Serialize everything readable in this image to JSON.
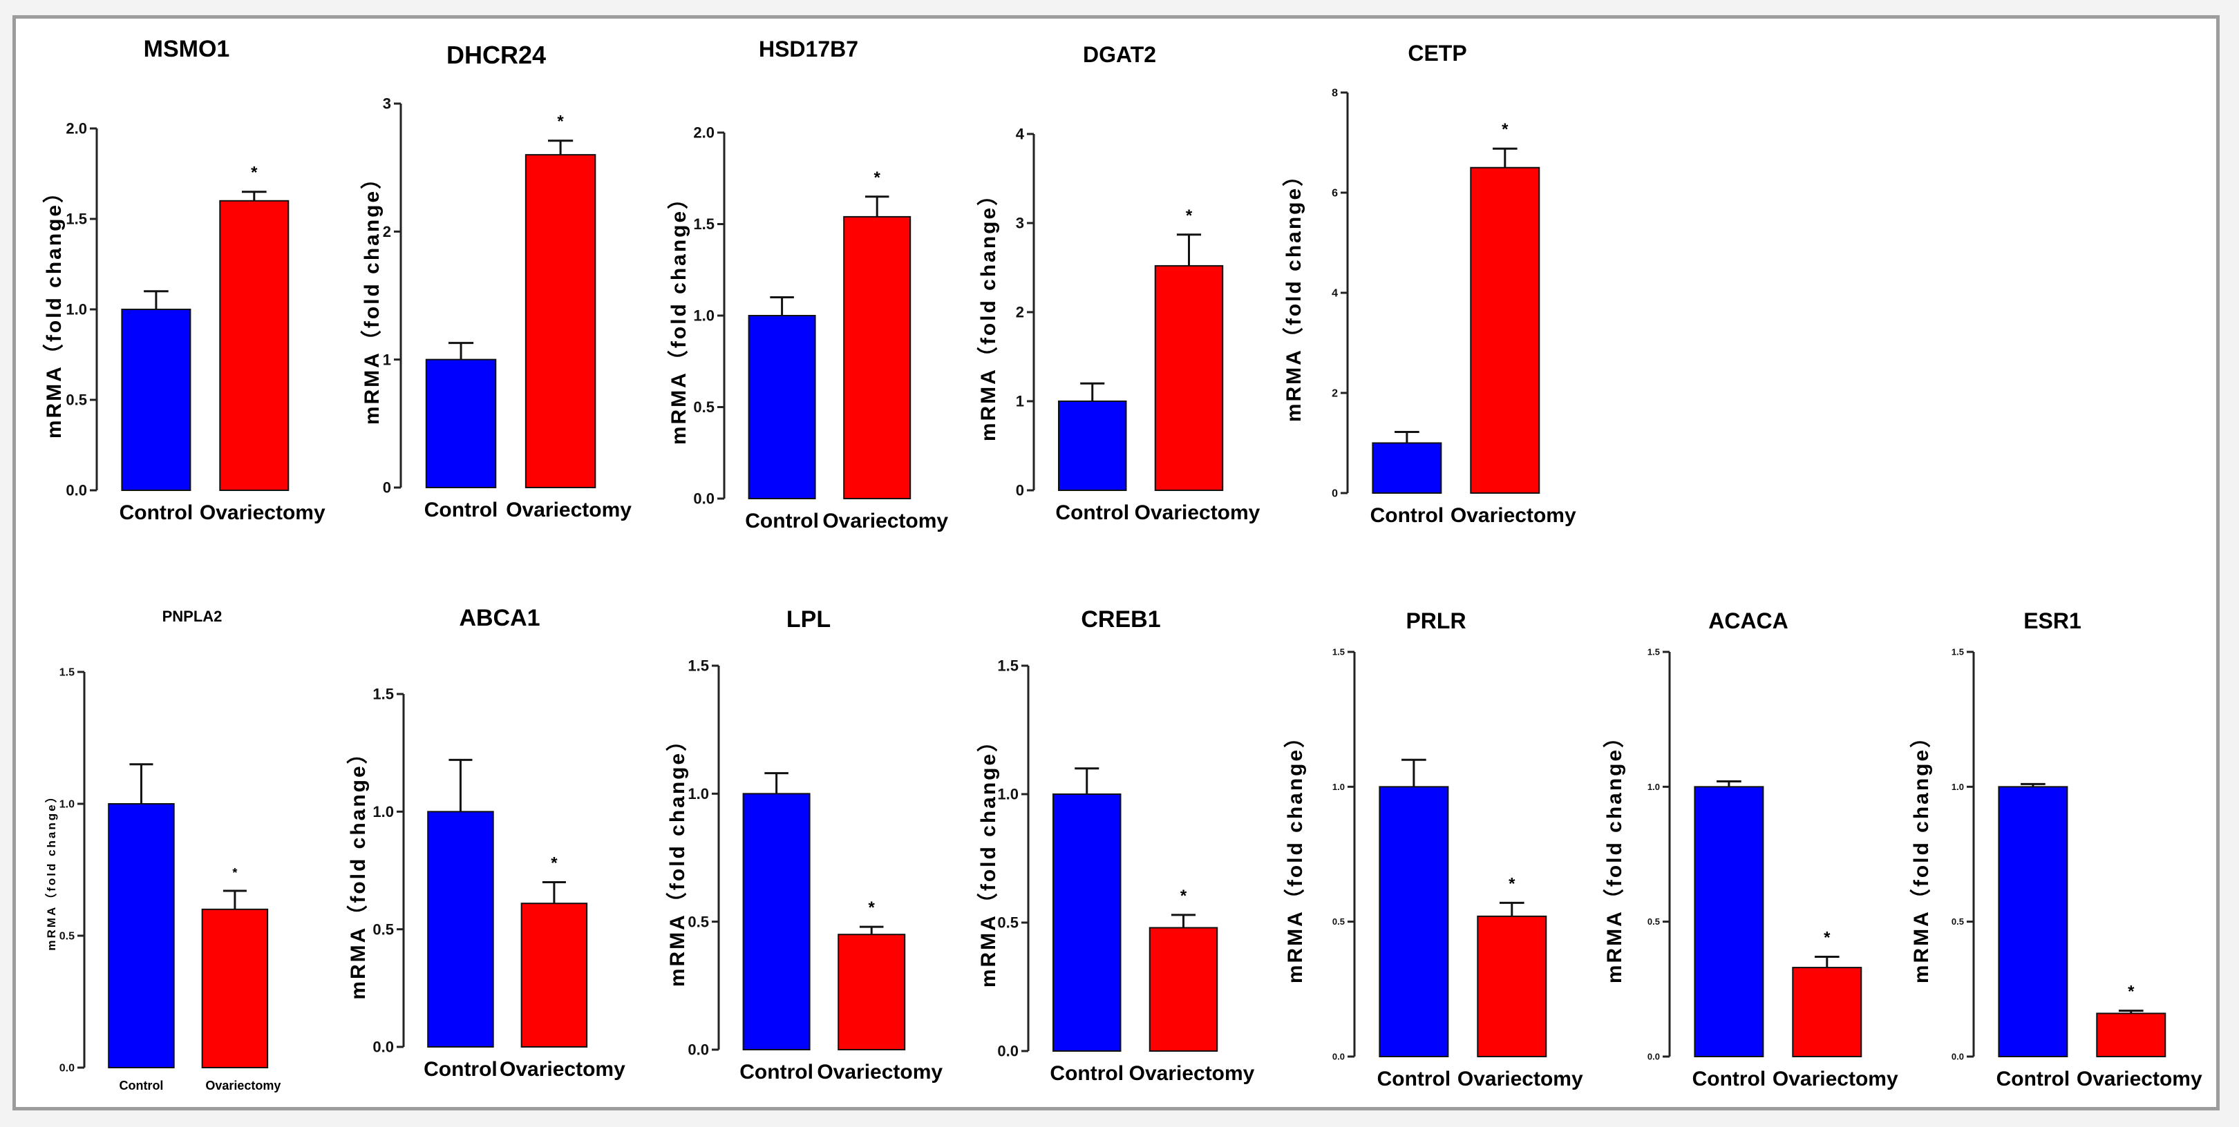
{
  "chart_data": [
    {
      "type": "bar",
      "title": "MSMO1",
      "categories": [
        "Control",
        "Ovariectomy"
      ],
      "values": [
        1.0,
        1.6
      ],
      "errors": [
        0.1,
        0.05
      ],
      "colors": [
        "#0000ff",
        "#ff0000"
      ],
      "ylabel": "mRMA（fold change）",
      "ylim": [
        0,
        2.0
      ],
      "yticks": [
        "0.0",
        "0.5",
        "1.0",
        "1.5",
        "2.0"
      ],
      "significance": [
        "",
        "*"
      ]
    },
    {
      "type": "bar",
      "title": "DHCR24",
      "categories": [
        "Control",
        "Ovariectomy"
      ],
      "values": [
        1.0,
        2.6
      ],
      "errors": [
        0.13,
        0.11
      ],
      "colors": [
        "#0000ff",
        "#ff0000"
      ],
      "ylabel": "mRMA（fold change）",
      "ylim": [
        0,
        3
      ],
      "yticks": [
        "0",
        "1",
        "2",
        "3"
      ],
      "significance": [
        "",
        "*"
      ]
    },
    {
      "type": "bar",
      "title": "HSD17B7",
      "categories": [
        "Control",
        "Ovariectomy"
      ],
      "values": [
        1.0,
        1.54
      ],
      "errors": [
        0.1,
        0.11
      ],
      "colors": [
        "#0000ff",
        "#ff0000"
      ],
      "ylabel": "mRMA（fold change）",
      "ylim": [
        0,
        2.0
      ],
      "yticks": [
        "0.0",
        "0.5",
        "1.0",
        "1.5",
        "2.0"
      ],
      "significance": [
        "",
        "*"
      ]
    },
    {
      "type": "bar",
      "title": "DGAT2",
      "categories": [
        "Control",
        "Ovariectomy"
      ],
      "values": [
        1.0,
        2.52
      ],
      "errors": [
        0.2,
        0.35
      ],
      "colors": [
        "#0000ff",
        "#ff0000"
      ],
      "ylabel": "mRMA（fold change）",
      "ylim": [
        0,
        4
      ],
      "yticks": [
        "0",
        "1",
        "2",
        "3",
        "4"
      ],
      "significance": [
        "",
        "*"
      ]
    },
    {
      "type": "bar",
      "title": "CETP",
      "categories": [
        "Control",
        "Ovariectomy"
      ],
      "values": [
        1.0,
        6.5
      ],
      "errors": [
        0.22,
        0.38
      ],
      "colors": [
        "#0000ff",
        "#ff0000"
      ],
      "ylabel": "mRMA（fold change）",
      "ylim": [
        0,
        8
      ],
      "yticks": [
        "0",
        "2",
        "4",
        "6",
        "8"
      ],
      "significance": [
        "",
        "*"
      ]
    },
    {
      "type": "bar",
      "title": "PNPLA2",
      "categories": [
        "Control",
        "Ovariectomy"
      ],
      "values": [
        1.0,
        0.6
      ],
      "errors": [
        0.15,
        0.07
      ],
      "colors": [
        "#0000ff",
        "#ff0000"
      ],
      "ylabel": "mRMA（fold change）",
      "ylim": [
        0,
        1.5
      ],
      "yticks": [
        "0.0",
        "0.5",
        "1.0",
        "1.5"
      ],
      "significance": [
        "",
        "*"
      ]
    },
    {
      "type": "bar",
      "title": "ABCA1",
      "categories": [
        "Control",
        "Ovariectomy"
      ],
      "values": [
        1.0,
        0.61
      ],
      "errors": [
        0.22,
        0.09
      ],
      "colors": [
        "#0000ff",
        "#ff0000"
      ],
      "ylabel": "mRMA（fold change）",
      "ylim": [
        0,
        1.5
      ],
      "yticks": [
        "0.0",
        "0.5",
        "1.0",
        "1.5"
      ],
      "significance": [
        "",
        "*"
      ]
    },
    {
      "type": "bar",
      "title": "LPL",
      "categories": [
        "Control",
        "Ovariectomy"
      ],
      "values": [
        1.0,
        0.45
      ],
      "errors": [
        0.08,
        0.03
      ],
      "colors": [
        "#0000ff",
        "#ff0000"
      ],
      "ylabel": "mRMA（fold change）",
      "ylim": [
        0,
        1.5
      ],
      "yticks": [
        "0.0",
        "0.5",
        "1.0",
        "1.5"
      ],
      "significance": [
        "",
        "*"
      ]
    },
    {
      "type": "bar",
      "title": "CREB1",
      "categories": [
        "Control",
        "Ovariectomy"
      ],
      "values": [
        1.0,
        0.48
      ],
      "errors": [
        0.1,
        0.05
      ],
      "colors": [
        "#0000ff",
        "#ff0000"
      ],
      "ylabel": "mRMA（fold change）",
      "ylim": [
        0,
        1.5
      ],
      "yticks": [
        "0.0",
        "0.5",
        "1.0",
        "1.5"
      ],
      "significance": [
        "",
        "*"
      ]
    },
    {
      "type": "bar",
      "title": "PRLR",
      "categories": [
        "Control",
        "Ovariectomy"
      ],
      "values": [
        1.0,
        0.52
      ],
      "errors": [
        0.1,
        0.05
      ],
      "colors": [
        "#0000ff",
        "#ff0000"
      ],
      "ylabel": "mRMA（fold change）",
      "ylim": [
        0,
        1.5
      ],
      "yticks": [
        "0.0",
        "0.5",
        "1.0",
        "1.5"
      ],
      "significance": [
        "",
        "*"
      ]
    },
    {
      "type": "bar",
      "title": "ACACA",
      "categories": [
        "Control",
        "Ovariectomy"
      ],
      "values": [
        1.0,
        0.33
      ],
      "errors": [
        0.02,
        0.04
      ],
      "colors": [
        "#0000ff",
        "#ff0000"
      ],
      "ylabel": "mRMA（fold change）",
      "ylim": [
        0,
        1.5
      ],
      "yticks": [
        "0.0",
        "0.5",
        "1.0",
        "1.5"
      ],
      "significance": [
        "",
        "*"
      ]
    },
    {
      "type": "bar",
      "title": "ESR1",
      "categories": [
        "Control",
        "Ovariectomy"
      ],
      "values": [
        1.0,
        0.16
      ],
      "errors": [
        0.01,
        0.01
      ],
      "colors": [
        "#0000ff",
        "#ff0000"
      ],
      "ylabel": "mRMA（fold change）",
      "ylim": [
        0,
        1.5
      ],
      "yticks": [
        "0.0",
        "0.5",
        "1.0",
        "1.5"
      ],
      "significance": [
        "",
        "*"
      ]
    }
  ]
}
